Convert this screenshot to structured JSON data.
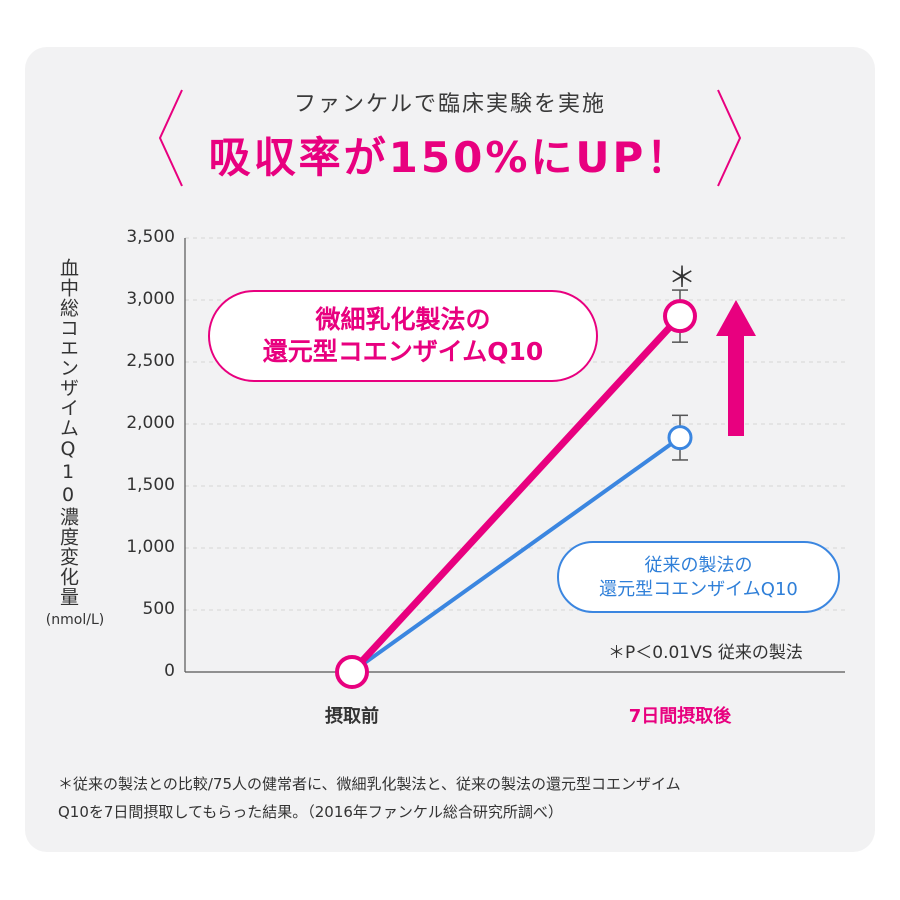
{
  "header": {
    "subtitle": "ファンケルで臨床実験を実施",
    "headline": "吸収率が150%にUP！"
  },
  "colors": {
    "accent": "#e8007f",
    "blue": "#3b86e0",
    "card": "#f2f2f3"
  },
  "chart_data": {
    "type": "line",
    "ylabel": "血中総コエンザイムQ10濃度変化量",
    "yunit": "(nmol/L)",
    "ylim": [
      0,
      3500
    ],
    "yticks": [
      "3,500",
      "3,000",
      "2,500",
      "2,000",
      "1,500",
      "1,000",
      "500",
      "0"
    ],
    "categories": [
      "摂取前",
      "7日間摂取後"
    ],
    "grid": "horizontal dashed",
    "series": [
      {
        "name": "微細乳化製法の還元型コエンザイムQ10",
        "values": [
          0,
          2870
        ],
        "error": [
          0,
          210
        ],
        "color": "#e8007f"
      },
      {
        "name": "従来の製法の還元型コエンザイムQ10",
        "values": [
          0,
          1890
        ],
        "error": [
          0,
          180
        ],
        "color": "#3b86e0"
      }
    ],
    "annotations": {
      "significance_mark": "＊",
      "significance_note": "＊P＜0.01VS 従来の製法"
    }
  },
  "callouts": {
    "pink_line1": "微細乳化製法の",
    "pink_line2": "還元型コエンザイムQ10",
    "blue_line1": "従来の製法の",
    "blue_line2": "還元型コエンザイムQ10"
  },
  "footnote": {
    "line1": "＊従来の製法との比較/75人の健常者に、微細乳化製法と、従来の製法の還元型コエンザイム",
    "line2": "Q10を7日間摂取してもらった結果。（2016年ファンケル総合研究所調べ）"
  }
}
